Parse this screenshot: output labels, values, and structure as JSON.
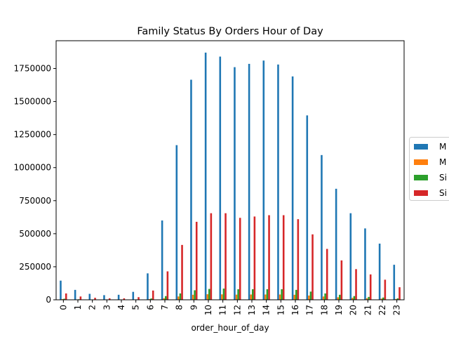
{
  "chart_data": {
    "type": "bar",
    "title": "Family Status By Orders Hour of Day",
    "xlabel": "order_hour_of_day",
    "ylabel": "",
    "ylim": [
      0,
      1960000
    ],
    "yticks": [
      0,
      250000,
      500000,
      750000,
      1000000,
      1250000,
      1500000,
      1750000
    ],
    "ytick_labels": [
      "0",
      "250000",
      "500000",
      "750000",
      "1000000",
      "1250000",
      "1500000",
      "1750000"
    ],
    "categories": [
      "0",
      "1",
      "2",
      "3",
      "4",
      "5",
      "6",
      "7",
      "8",
      "9",
      "10",
      "11",
      "12",
      "13",
      "14",
      "15",
      "16",
      "17",
      "18",
      "19",
      "20",
      "21",
      "22",
      "23"
    ],
    "legend_position": "center-right (outside plot, clipped)",
    "legend_labels": [
      "M",
      "M",
      "Si",
      "Si"
    ],
    "series": [
      {
        "color": "#1f77b4",
        "values": [
          145000,
          75000,
          45000,
          35000,
          38000,
          60000,
          200000,
          600000,
          1170000,
          1665000,
          1870000,
          1840000,
          1760000,
          1785000,
          1810000,
          1780000,
          1690000,
          1395000,
          1095000,
          840000,
          655000,
          540000,
          425000,
          265000
        ]
      },
      {
        "color": "#ff7f0e",
        "values": [
          5000,
          2500,
          1500,
          1000,
          1000,
          1500,
          5000,
          12000,
          25000,
          38000,
          42000,
          41000,
          39000,
          40000,
          40000,
          40000,
          38000,
          32000,
          25000,
          19000,
          15000,
          12000,
          9000,
          6000
        ]
      },
      {
        "color": "#2ca02c",
        "values": [
          8000,
          4000,
          2500,
          2000,
          2000,
          3000,
          10000,
          28000,
          48000,
          72000,
          82000,
          85000,
          80000,
          80000,
          80000,
          80000,
          75000,
          62000,
          48000,
          38000,
          28000,
          22000,
          17000,
          11000
        ]
      },
      {
        "color": "#d62728",
        "values": [
          48000,
          25000,
          15000,
          11000,
          11000,
          20000,
          70000,
          215000,
          415000,
          590000,
          655000,
          655000,
          620000,
          630000,
          640000,
          640000,
          610000,
          495000,
          385000,
          298000,
          232000,
          192000,
          152000,
          95000
        ]
      }
    ]
  }
}
